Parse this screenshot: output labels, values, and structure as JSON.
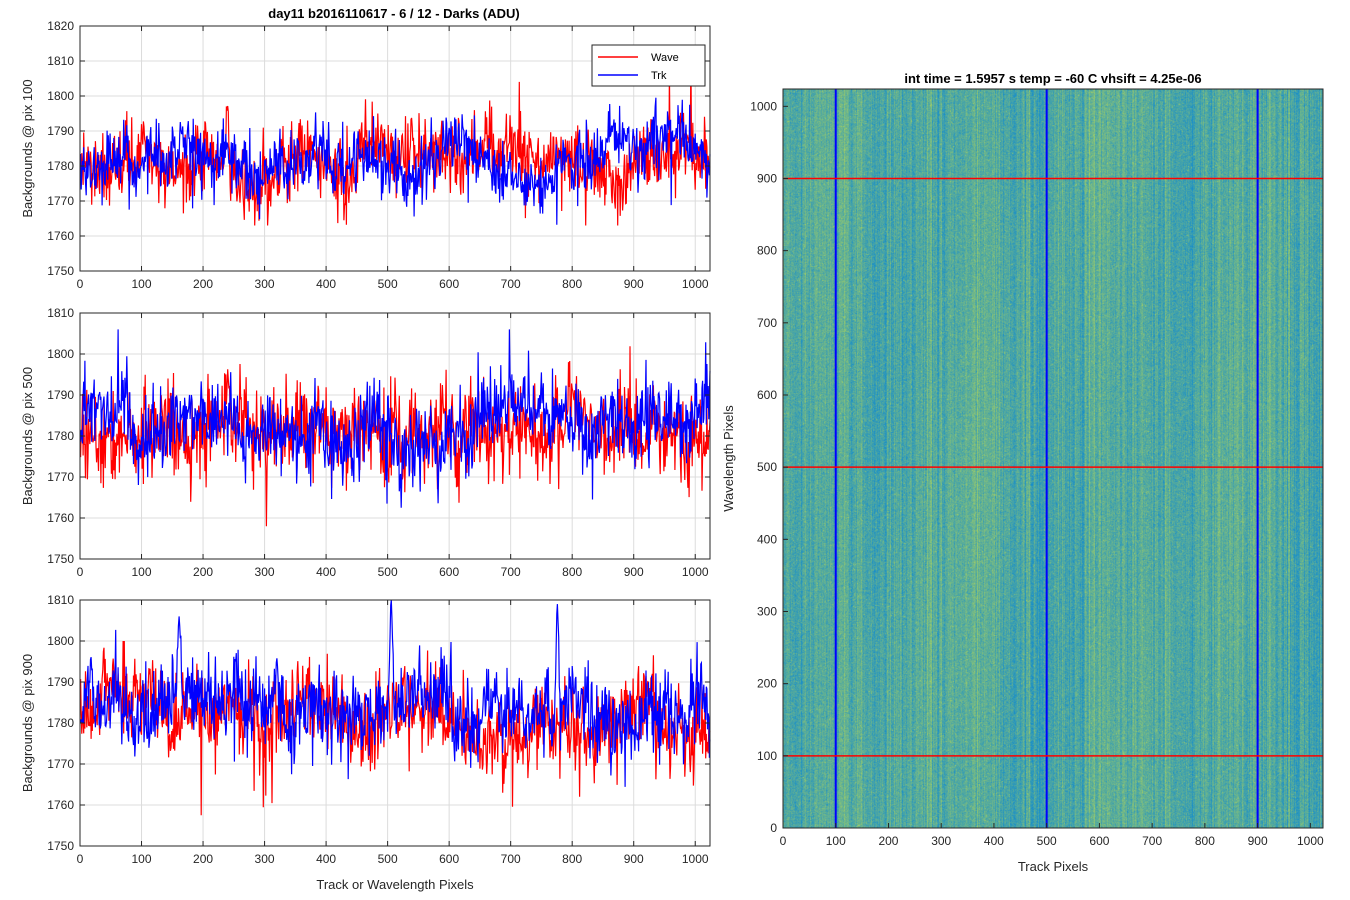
{
  "figure_title": "day11 b2016110617 - 6 / 12 - Darks (ADU)",
  "colors": {
    "wave": "#ff0000",
    "trk": "#0000ff",
    "grid": "#dcdcdc",
    "axis": "#262626",
    "image_base": "#1c9bc4",
    "image_light": "#72c7a3"
  },
  "chart_data": [
    {
      "type": "line",
      "title": "day11 b2016110617 - 6 / 12 - Darks (ADU)",
      "xlabel": "",
      "ylabel": "Backgrounds @ pix 100",
      "xlim": [
        0,
        1024
      ],
      "ylim": [
        1750,
        1820
      ],
      "xticks": [
        0,
        100,
        200,
        300,
        400,
        500,
        600,
        700,
        800,
        900,
        1000
      ],
      "yticks": [
        1750,
        1760,
        1770,
        1780,
        1790,
        1800,
        1810,
        1820
      ],
      "grid": true,
      "legend": {
        "location": "top-right",
        "entries": [
          "Wave",
          "Trk"
        ]
      },
      "series": [
        {
          "name": "Wave",
          "color": "#ff0000",
          "mean": 1782,
          "std": 7,
          "min": 1763,
          "max": 1812
        },
        {
          "name": "Trk",
          "color": "#0000ff",
          "mean": 1780.5,
          "std": 5.5,
          "min": 1759,
          "max": 1802
        }
      ]
    },
    {
      "type": "line",
      "xlabel": "",
      "ylabel": "Backgrounds @ pix 500",
      "xlim": [
        0,
        1024
      ],
      "ylim": [
        1750,
        1810
      ],
      "xticks": [
        0,
        100,
        200,
        300,
        400,
        500,
        600,
        700,
        800,
        900,
        1000
      ],
      "yticks": [
        1750,
        1760,
        1770,
        1780,
        1790,
        1800,
        1810
      ],
      "grid": true,
      "series": [
        {
          "name": "Wave",
          "color": "#ff0000",
          "mean": 1781.5,
          "std": 6.5,
          "min": 1758,
          "max": 1809
        },
        {
          "name": "Trk",
          "color": "#0000ff",
          "mean": 1782,
          "std": 6,
          "min": 1756,
          "max": 1806
        }
      ]
    },
    {
      "type": "line",
      "xlabel": "Track or Wavelength Pixels",
      "ylabel": "Backgrounds @ pix 900",
      "xlim": [
        0,
        1024
      ],
      "ylim": [
        1750,
        1810
      ],
      "xticks": [
        0,
        100,
        200,
        300,
        400,
        500,
        600,
        700,
        800,
        900,
        1000
      ],
      "yticks": [
        1750,
        1760,
        1770,
        1780,
        1790,
        1800,
        1810
      ],
      "grid": true,
      "series": [
        {
          "name": "Wave",
          "color": "#ff0000",
          "mean": 1781,
          "std": 6.5,
          "min": 1757,
          "max": 1800
        },
        {
          "name": "Trk",
          "color": "#0000ff",
          "mean": 1784,
          "std": 6,
          "min": 1759,
          "max": 1810,
          "peaks": [
            [
              505,
              1810
            ],
            [
              775,
              1809
            ],
            [
              160,
              1806
            ]
          ]
        }
      ]
    },
    {
      "type": "heatmap",
      "title": "int time = 1.5957 s    temp = -60 C    vhsift = 4.25e-06",
      "xlabel": "Track Pixels",
      "ylabel": "Wavelength Pixels",
      "xlim": [
        0,
        1024
      ],
      "ylim": [
        0,
        1024
      ],
      "xticks": [
        0,
        100,
        200,
        300,
        400,
        500,
        600,
        700,
        800,
        900,
        1000
      ],
      "yticks": [
        0,
        100,
        200,
        300,
        400,
        500,
        600,
        700,
        800,
        900,
        1000
      ],
      "grid": false,
      "vertical_markers": {
        "x": [
          100,
          500,
          900
        ],
        "color": "#0000ff"
      },
      "horizontal_markers": {
        "y": [
          100,
          500,
          900
        ],
        "color": "#ff0000"
      }
    }
  ]
}
